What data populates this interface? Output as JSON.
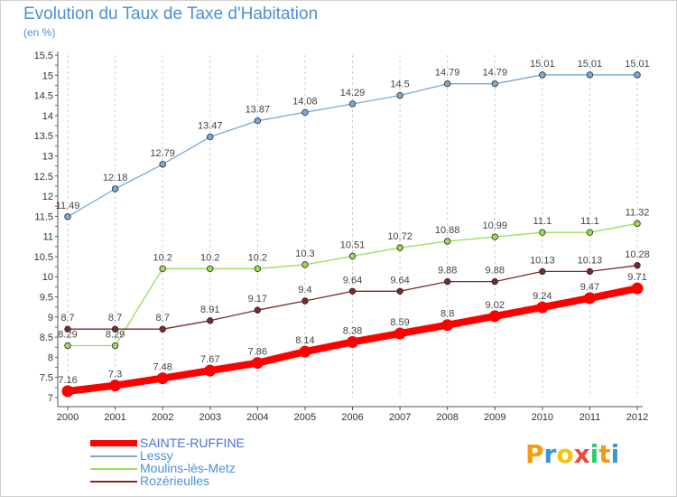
{
  "header": {
    "title": "Evolution du Taux de Taxe d'Habitation",
    "unit": "(en %)"
  },
  "logo": {
    "letters": [
      "P",
      "r",
      "o",
      "x",
      "i",
      "t",
      "i"
    ],
    "colors": [
      "#f39c12",
      "#3498db",
      "#f1c40f",
      "#e74c3c",
      "#2ecc71",
      "#f39c12",
      "#3498db"
    ]
  },
  "chart_data": {
    "type": "line",
    "title": "Evolution du Taux de Taxe d'Habitation",
    "ylabel": "(en %)",
    "xlabel": "",
    "x": [
      "2000",
      "2001",
      "2002",
      "2003",
      "2004",
      "2005",
      "2006",
      "2007",
      "2008",
      "2009",
      "2010",
      "2011",
      "2012"
    ],
    "ylim": [
      7,
      15.5
    ],
    "yticks": [
      "7",
      "7.5",
      "8",
      "8.5",
      "9",
      "9.5",
      "10",
      "10.5",
      "11",
      "11.5",
      "12",
      "12.5",
      "13",
      "13.5",
      "14",
      "14.5",
      "15",
      "15.5"
    ],
    "grid": "vertical dashed",
    "legend": "bottom-left",
    "series": [
      {
        "name": "SAINTE-RUFFINE",
        "color": "#ff0000",
        "values": [
          7.16,
          7.3,
          7.48,
          7.67,
          7.86,
          8.14,
          8.38,
          8.59,
          8.8,
          9.02,
          9.24,
          9.47,
          9.71
        ],
        "labels": [
          "7.16",
          "7.3",
          "7.48",
          "7.67",
          "7.86",
          "8.14",
          "8.38",
          "8.59",
          "8.8",
          "9.02",
          "9.24",
          "9.47",
          "9.71"
        ]
      },
      {
        "name": "Lessy",
        "color": "#7aaad6",
        "values": [
          11.49,
          12.18,
          12.79,
          13.47,
          13.87,
          14.08,
          14.29,
          14.5,
          14.79,
          14.79,
          15.01,
          15.01,
          15.01
        ],
        "labels": [
          "11.49",
          "12.18",
          "12.79",
          "13.47",
          "13.87",
          "14.08",
          "14.29",
          "14.5",
          "14.79",
          "14.79",
          "15.01",
          "15.01",
          "15.01"
        ]
      },
      {
        "name": "Moulins-lès-Metz",
        "color": "#99dd55",
        "values": [
          8.29,
          8.29,
          10.2,
          10.2,
          10.2,
          10.3,
          10.51,
          10.72,
          10.88,
          10.99,
          11.1,
          11.1,
          11.32
        ],
        "labels": [
          "8.29",
          "8.29",
          "10.2",
          "10.2",
          "10.2",
          "10.3",
          "10.51",
          "10.72",
          "10.88",
          "10.99",
          "11.1",
          "11.1",
          "11.32"
        ]
      },
      {
        "name": "Rozérieulles",
        "color": "#7a2a2a",
        "values": [
          8.7,
          8.7,
          8.7,
          8.91,
          9.17,
          9.4,
          9.64,
          9.64,
          9.88,
          9.88,
          10.13,
          10.13,
          10.28
        ],
        "labels": [
          "8.7",
          "8.7",
          "8.7",
          "8.91",
          "9.17",
          "9.4",
          "9.64",
          "9.64",
          "9.88",
          "9.88",
          "10.13",
          "10.13",
          "10.28"
        ]
      }
    ]
  }
}
